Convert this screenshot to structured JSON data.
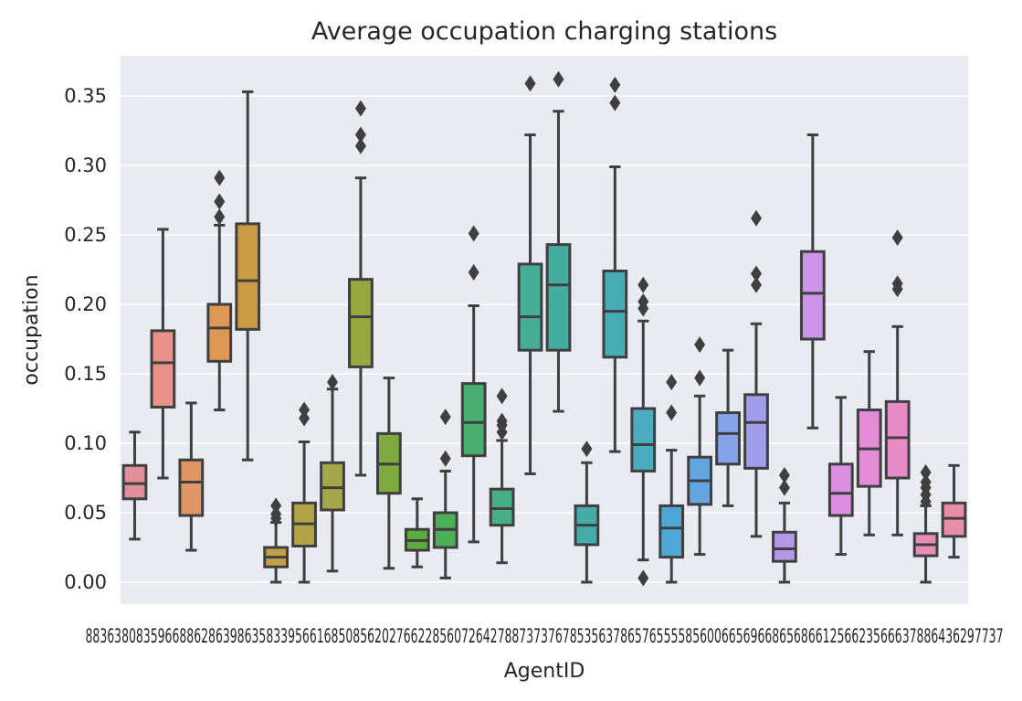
{
  "chart_data": {
    "type": "box",
    "title": "Average occupation charging stations",
    "xlabel": "AgentID",
    "ylabel": "occupation",
    "ylim": [
      -0.017,
      0.38
    ],
    "yticks": [
      "0.00",
      "0.05",
      "0.10",
      "0.15",
      "0.20",
      "0.25",
      "0.30",
      "0.35"
    ],
    "grid": true,
    "background": "#eaeaf2",
    "xtick_label_strip": "8836380835966886286398635833956616850856202766228560726427887373767853563786576555585600665696686568661256623566637886436297737",
    "boxes": [
      {
        "color": "#e28f9a",
        "whislo": 0.031,
        "q1": 0.06,
        "med": 0.071,
        "q3": 0.084,
        "whishi": 0.108,
        "fliers": []
      },
      {
        "color": "#e8928a",
        "whislo": 0.075,
        "q1": 0.126,
        "med": 0.158,
        "q3": 0.181,
        "whishi": 0.254,
        "fliers": []
      },
      {
        "color": "#e09664",
        "whislo": 0.023,
        "q1": 0.048,
        "med": 0.072,
        "q3": 0.088,
        "whishi": 0.129,
        "fliers": []
      },
      {
        "color": "#de9855",
        "whislo": 0.124,
        "q1": 0.159,
        "med": 0.183,
        "q3": 0.2,
        "whishi": 0.257,
        "fliers": [
          0.263,
          0.274,
          0.291
        ]
      },
      {
        "color": "#cc9a42",
        "whislo": 0.088,
        "q1": 0.182,
        "med": 0.217,
        "q3": 0.258,
        "whishi": 0.353,
        "fliers": []
      },
      {
        "color": "#c3a047",
        "whislo": 0.0,
        "q1": 0.011,
        "med": 0.018,
        "q3": 0.025,
        "whishi": 0.043,
        "fliers": [
          0.046,
          0.049,
          0.055
        ]
      },
      {
        "color": "#b3a347",
        "whislo": 0.0,
        "q1": 0.026,
        "med": 0.042,
        "q3": 0.057,
        "whishi": 0.101,
        "fliers": [
          0.118,
          0.124
        ]
      },
      {
        "color": "#a4a748",
        "whislo": 0.008,
        "q1": 0.052,
        "med": 0.068,
        "q3": 0.086,
        "whishi": 0.139,
        "fliers": [
          0.144
        ]
      },
      {
        "color": "#97a840",
        "whislo": 0.077,
        "q1": 0.155,
        "med": 0.191,
        "q3": 0.218,
        "whishi": 0.291,
        "fliers": [
          0.314,
          0.322,
          0.341
        ]
      },
      {
        "color": "#7eaa40",
        "whislo": 0.01,
        "q1": 0.064,
        "med": 0.085,
        "q3": 0.107,
        "whishi": 0.147,
        "fliers": []
      },
      {
        "color": "#5eac41",
        "whislo": 0.011,
        "q1": 0.023,
        "med": 0.03,
        "q3": 0.038,
        "whishi": 0.06,
        "fliers": []
      },
      {
        "color": "#4dae57",
        "whislo": 0.003,
        "q1": 0.025,
        "med": 0.038,
        "q3": 0.05,
        "whishi": 0.08,
        "fliers": [
          0.089,
          0.119
        ]
      },
      {
        "color": "#4aae71",
        "whislo": 0.029,
        "q1": 0.091,
        "med": 0.115,
        "q3": 0.143,
        "whishi": 0.199,
        "fliers": [
          0.223,
          0.251
        ]
      },
      {
        "color": "#48ae85",
        "whislo": 0.014,
        "q1": 0.041,
        "med": 0.053,
        "q3": 0.067,
        "whishi": 0.102,
        "fliers": [
          0.108,
          0.113,
          0.116,
          0.134
        ]
      },
      {
        "color": "#45ad93",
        "whislo": 0.078,
        "q1": 0.167,
        "med": 0.191,
        "q3": 0.229,
        "whishi": 0.322,
        "fliers": [
          0.359
        ]
      },
      {
        "color": "#44ad9f",
        "whislo": 0.123,
        "q1": 0.167,
        "med": 0.214,
        "q3": 0.243,
        "whishi": 0.339,
        "fliers": [
          0.362
        ]
      },
      {
        "color": "#45acaa",
        "whislo": 0.0,
        "q1": 0.027,
        "med": 0.041,
        "q3": 0.055,
        "whishi": 0.086,
        "fliers": [
          0.096
        ]
      },
      {
        "color": "#47acb6",
        "whislo": 0.094,
        "q1": 0.162,
        "med": 0.195,
        "q3": 0.224,
        "whishi": 0.299,
        "fliers": [
          0.345,
          0.358
        ]
      },
      {
        "color": "#4aabc3",
        "whislo": 0.016,
        "q1": 0.08,
        "med": 0.099,
        "q3": 0.125,
        "whishi": 0.188,
        "fliers": [
          0.003,
          0.197,
          0.202,
          0.214
        ]
      },
      {
        "color": "#4da8d4",
        "whislo": 0.0,
        "q1": 0.018,
        "med": 0.039,
        "q3": 0.055,
        "whishi": 0.095,
        "fliers": [
          0.122,
          0.144
        ]
      },
      {
        "color": "#63a6e0",
        "whislo": 0.02,
        "q1": 0.056,
        "med": 0.073,
        "q3": 0.09,
        "whishi": 0.134,
        "fliers": [
          0.147,
          0.171
        ]
      },
      {
        "color": "#85a3e8",
        "whislo": 0.055,
        "q1": 0.085,
        "med": 0.107,
        "q3": 0.122,
        "whishi": 0.167,
        "fliers": []
      },
      {
        "color": "#a09deb",
        "whislo": 0.033,
        "q1": 0.082,
        "med": 0.115,
        "q3": 0.135,
        "whishi": 0.186,
        "fliers": [
          0.214,
          0.222,
          0.262
        ]
      },
      {
        "color": "#b597ea",
        "whislo": 0.0,
        "q1": 0.015,
        "med": 0.024,
        "q3": 0.036,
        "whishi": 0.057,
        "fliers": [
          0.068,
          0.077
        ]
      },
      {
        "color": "#cc93e7",
        "whislo": 0.111,
        "q1": 0.175,
        "med": 0.208,
        "q3": 0.238,
        "whishi": 0.322,
        "fliers": []
      },
      {
        "color": "#db8fe0",
        "whislo": 0.02,
        "q1": 0.048,
        "med": 0.064,
        "q3": 0.085,
        "whishi": 0.133,
        "fliers": []
      },
      {
        "color": "#e38bd6",
        "whislo": 0.034,
        "q1": 0.069,
        "med": 0.096,
        "q3": 0.124,
        "whishi": 0.166,
        "fliers": []
      },
      {
        "color": "#e68bc8",
        "whislo": 0.034,
        "q1": 0.075,
        "med": 0.104,
        "q3": 0.13,
        "whishi": 0.184,
        "fliers": [
          0.211,
          0.215,
          0.248
        ]
      },
      {
        "color": "#e88cb9",
        "whislo": 0.0,
        "q1": 0.019,
        "med": 0.027,
        "q3": 0.035,
        "whishi": 0.055,
        "fliers": [
          0.058,
          0.063,
          0.068,
          0.072,
          0.079
        ]
      },
      {
        "color": "#e98ea8",
        "whislo": 0.018,
        "q1": 0.033,
        "med": 0.046,
        "q3": 0.057,
        "whishi": 0.084,
        "fliers": []
      }
    ]
  }
}
